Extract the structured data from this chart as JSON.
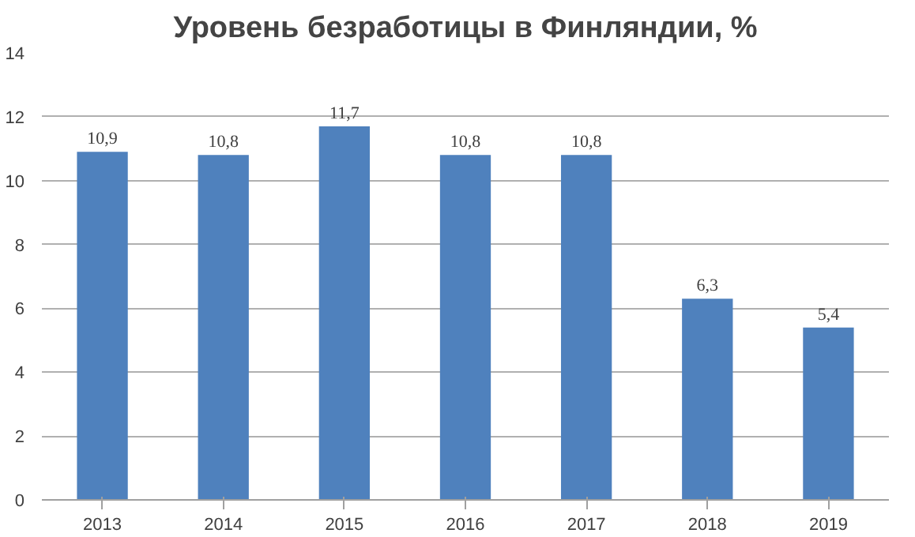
{
  "chart_data": {
    "type": "bar",
    "title": "Уровень безработицы в Финляндии, %",
    "categories": [
      "2013",
      "2014",
      "2015",
      "2016",
      "2017",
      "2018",
      "2019"
    ],
    "values": [
      10.9,
      10.8,
      11.7,
      10.8,
      10.8,
      6.3,
      5.4
    ],
    "value_labels": [
      "10,9",
      "10,8",
      "11,7",
      "10,8",
      "10,8",
      "6,3",
      "5,4"
    ],
    "color": "#4f81bd",
    "ylim": [
      0,
      14
    ],
    "yticks": [
      0,
      2,
      4,
      6,
      8,
      10,
      12,
      14
    ],
    "grid": "y"
  }
}
